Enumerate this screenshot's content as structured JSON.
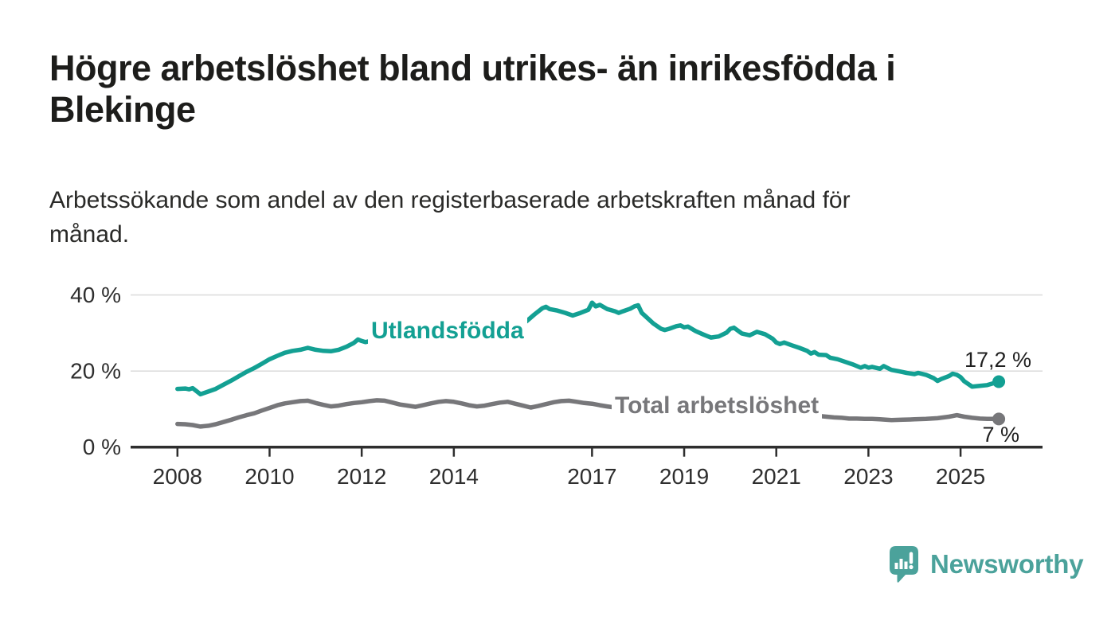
{
  "header": {
    "title_line1": "Högre arbetslöshet bland utrikes- än inrikesfödda i",
    "title_line2": "Blekinge",
    "subtitle_line1": "Arbetssökande som andel av den registerbaserade arbetskraften månad för",
    "subtitle_line2": "månad."
  },
  "chart_data": {
    "type": "line",
    "title": "",
    "xlabel": "",
    "ylabel": "",
    "x_unit": "year (monthly data)",
    "xlim": [
      2007,
      2026.6
    ],
    "ylim": [
      0,
      42
    ],
    "grid": "horizontal",
    "legend_position": "inline-labels-on-lines",
    "x_ticks": [
      {
        "year": 2008,
        "label": "2008"
      },
      {
        "year": 2010,
        "label": "2010"
      },
      {
        "year": 2012,
        "label": "2012"
      },
      {
        "year": 2014,
        "label": "2014"
      },
      {
        "year": 2017,
        "label": "2017"
      },
      {
        "year": 2019,
        "label": "2019"
      },
      {
        "year": 2021,
        "label": "2021"
      },
      {
        "year": 2023,
        "label": "2023"
      },
      {
        "year": 2025,
        "label": "2025"
      }
    ],
    "y_ticks": [
      {
        "value": 0,
        "label": "0 %"
      },
      {
        "value": 20,
        "label": "20 %"
      },
      {
        "value": 40,
        "label": "40 %"
      }
    ],
    "series": [
      {
        "name": "Utlandsfödda",
        "color": "#13a093",
        "end_label": "17,2 %",
        "end_value": 17.2,
        "points": [
          [
            2008.0,
            15.3
          ],
          [
            2008.17,
            15.4
          ],
          [
            2008.25,
            15.2
          ],
          [
            2008.33,
            15.5
          ],
          [
            2008.5,
            13.9
          ],
          [
            2008.67,
            14.6
          ],
          [
            2008.83,
            15.3
          ],
          [
            2009.0,
            16.4
          ],
          [
            2009.17,
            17.5
          ],
          [
            2009.33,
            18.6
          ],
          [
            2009.5,
            19.8
          ],
          [
            2009.67,
            20.8
          ],
          [
            2009.83,
            21.9
          ],
          [
            2010.0,
            23.1
          ],
          [
            2010.17,
            24.0
          ],
          [
            2010.33,
            24.8
          ],
          [
            2010.5,
            25.3
          ],
          [
            2010.67,
            25.6
          ],
          [
            2010.83,
            26.1
          ],
          [
            2011.0,
            25.6
          ],
          [
            2011.17,
            25.3
          ],
          [
            2011.33,
            25.2
          ],
          [
            2011.5,
            25.6
          ],
          [
            2011.67,
            26.4
          ],
          [
            2011.83,
            27.4
          ],
          [
            2011.92,
            28.3
          ],
          [
            2012.0,
            27.9
          ],
          [
            2012.08,
            27.6
          ],
          [
            2012.25,
            28.1
          ],
          [
            2012.42,
            28.4
          ],
          [
            2012.58,
            27.9
          ],
          [
            2012.75,
            27.7
          ],
          [
            2012.92,
            28.1
          ],
          [
            2013.08,
            28.6
          ],
          [
            2013.25,
            29.4
          ],
          [
            2013.42,
            29.1
          ],
          [
            2013.58,
            28.8
          ],
          [
            2013.75,
            28.5
          ],
          [
            2013.92,
            28.9
          ],
          [
            2014.08,
            29.5
          ],
          [
            2014.25,
            29.0
          ],
          [
            2014.42,
            28.6
          ],
          [
            2014.58,
            28.6
          ],
          [
            2014.75,
            29.0
          ],
          [
            2014.92,
            29.6
          ],
          [
            2015.08,
            30.2
          ],
          [
            2015.25,
            30.9
          ],
          [
            2015.42,
            31.8
          ],
          [
            2015.58,
            33.1
          ],
          [
            2015.75,
            34.9
          ],
          [
            2015.92,
            36.5
          ],
          [
            2016.0,
            36.9
          ],
          [
            2016.08,
            36.3
          ],
          [
            2016.25,
            35.9
          ],
          [
            2016.42,
            35.3
          ],
          [
            2016.58,
            34.6
          ],
          [
            2016.75,
            35.3
          ],
          [
            2016.92,
            36.1
          ],
          [
            2017.0,
            38.0
          ],
          [
            2017.08,
            37.0
          ],
          [
            2017.17,
            37.4
          ],
          [
            2017.33,
            36.3
          ],
          [
            2017.5,
            35.7
          ],
          [
            2017.58,
            35.3
          ],
          [
            2017.67,
            35.7
          ],
          [
            2017.83,
            36.4
          ],
          [
            2017.92,
            37.0
          ],
          [
            2018.0,
            37.3
          ],
          [
            2018.08,
            35.3
          ],
          [
            2018.17,
            34.3
          ],
          [
            2018.33,
            32.5
          ],
          [
            2018.5,
            31.1
          ],
          [
            2018.58,
            30.8
          ],
          [
            2018.67,
            31.1
          ],
          [
            2018.83,
            31.8
          ],
          [
            2018.92,
            32.0
          ],
          [
            2019.0,
            31.5
          ],
          [
            2019.08,
            31.7
          ],
          [
            2019.25,
            30.5
          ],
          [
            2019.42,
            29.6
          ],
          [
            2019.58,
            28.8
          ],
          [
            2019.75,
            29.1
          ],
          [
            2019.92,
            30.1
          ],
          [
            2020.0,
            31.1
          ],
          [
            2020.08,
            31.4
          ],
          [
            2020.25,
            29.9
          ],
          [
            2020.42,
            29.4
          ],
          [
            2020.58,
            30.3
          ],
          [
            2020.75,
            29.7
          ],
          [
            2020.92,
            28.5
          ],
          [
            2021.0,
            27.5
          ],
          [
            2021.08,
            27.1
          ],
          [
            2021.17,
            27.5
          ],
          [
            2021.33,
            26.8
          ],
          [
            2021.5,
            26.1
          ],
          [
            2021.67,
            25.3
          ],
          [
            2021.75,
            24.6
          ],
          [
            2021.83,
            25.0
          ],
          [
            2021.92,
            24.3
          ],
          [
            2022.08,
            24.2
          ],
          [
            2022.17,
            23.5
          ],
          [
            2022.33,
            23.1
          ],
          [
            2022.5,
            22.4
          ],
          [
            2022.67,
            21.7
          ],
          [
            2022.83,
            20.9
          ],
          [
            2022.92,
            21.3
          ],
          [
            2023.0,
            20.9
          ],
          [
            2023.08,
            21.1
          ],
          [
            2023.25,
            20.6
          ],
          [
            2023.33,
            21.3
          ],
          [
            2023.5,
            20.3
          ],
          [
            2023.67,
            19.9
          ],
          [
            2023.83,
            19.5
          ],
          [
            2024.0,
            19.2
          ],
          [
            2024.08,
            19.5
          ],
          [
            2024.25,
            19.0
          ],
          [
            2024.42,
            18.1
          ],
          [
            2024.5,
            17.4
          ],
          [
            2024.58,
            17.9
          ],
          [
            2024.75,
            18.7
          ],
          [
            2024.83,
            19.3
          ],
          [
            2024.92,
            19.0
          ],
          [
            2025.0,
            18.4
          ],
          [
            2025.08,
            17.3
          ],
          [
            2025.25,
            15.9
          ],
          [
            2025.42,
            16.1
          ],
          [
            2025.58,
            16.3
          ],
          [
            2025.83,
            17.2
          ]
        ]
      },
      {
        "name": "Total arbetslöshet",
        "color": "#77777a",
        "end_label": "7 %",
        "end_value": 7,
        "points": [
          [
            2008.0,
            6.1
          ],
          [
            2008.17,
            6.0
          ],
          [
            2008.33,
            5.8
          ],
          [
            2008.5,
            5.4
          ],
          [
            2008.67,
            5.6
          ],
          [
            2008.83,
            6.0
          ],
          [
            2009.0,
            6.6
          ],
          [
            2009.17,
            7.2
          ],
          [
            2009.33,
            7.8
          ],
          [
            2009.5,
            8.4
          ],
          [
            2009.67,
            8.9
          ],
          [
            2009.83,
            9.6
          ],
          [
            2010.0,
            10.3
          ],
          [
            2010.17,
            11.0
          ],
          [
            2010.33,
            11.5
          ],
          [
            2010.5,
            11.8
          ],
          [
            2010.67,
            12.1
          ],
          [
            2010.83,
            12.2
          ],
          [
            2011.0,
            11.6
          ],
          [
            2011.17,
            11.1
          ],
          [
            2011.33,
            10.7
          ],
          [
            2011.5,
            10.9
          ],
          [
            2011.67,
            11.3
          ],
          [
            2011.83,
            11.6
          ],
          [
            2012.0,
            11.8
          ],
          [
            2012.17,
            12.1
          ],
          [
            2012.33,
            12.3
          ],
          [
            2012.5,
            12.2
          ],
          [
            2012.67,
            11.7
          ],
          [
            2012.83,
            11.2
          ],
          [
            2013.0,
            10.9
          ],
          [
            2013.17,
            10.6
          ],
          [
            2013.33,
            11.0
          ],
          [
            2013.5,
            11.5
          ],
          [
            2013.67,
            11.9
          ],
          [
            2013.83,
            12.1
          ],
          [
            2014.0,
            11.9
          ],
          [
            2014.17,
            11.5
          ],
          [
            2014.33,
            11.0
          ],
          [
            2014.5,
            10.7
          ],
          [
            2014.67,
            10.9
          ],
          [
            2014.83,
            11.3
          ],
          [
            2015.0,
            11.7
          ],
          [
            2015.17,
            11.9
          ],
          [
            2015.33,
            11.4
          ],
          [
            2015.5,
            10.9
          ],
          [
            2015.67,
            10.4
          ],
          [
            2015.83,
            10.8
          ],
          [
            2016.0,
            11.3
          ],
          [
            2016.17,
            11.8
          ],
          [
            2016.33,
            12.1
          ],
          [
            2016.5,
            12.2
          ],
          [
            2016.67,
            11.9
          ],
          [
            2016.83,
            11.6
          ],
          [
            2017.0,
            11.4
          ],
          [
            2017.17,
            11.0
          ],
          [
            2017.33,
            10.7
          ],
          [
            2017.5,
            10.4
          ],
          [
            2017.75,
            10.1
          ],
          [
            2018.0,
            9.8
          ],
          [
            2018.25,
            9.6
          ],
          [
            2018.5,
            9.4
          ],
          [
            2018.75,
            9.2
          ],
          [
            2019.0,
            9.1
          ],
          [
            2019.25,
            9.0
          ],
          [
            2019.5,
            9.2
          ],
          [
            2019.75,
            9.5
          ],
          [
            2020.0,
            9.9
          ],
          [
            2020.25,
            10.6
          ],
          [
            2020.5,
            10.3
          ],
          [
            2020.75,
            10.0
          ],
          [
            2021.0,
            9.6
          ],
          [
            2021.25,
            9.2
          ],
          [
            2021.5,
            8.8
          ],
          [
            2021.75,
            8.4
          ],
          [
            2022.0,
            8.1
          ],
          [
            2022.25,
            7.8
          ],
          [
            2022.42,
            7.7
          ],
          [
            2022.58,
            7.5
          ],
          [
            2022.75,
            7.5
          ],
          [
            2022.92,
            7.4
          ],
          [
            2023.08,
            7.4
          ],
          [
            2023.25,
            7.3
          ],
          [
            2023.5,
            7.1
          ],
          [
            2023.75,
            7.2
          ],
          [
            2024.0,
            7.3
          ],
          [
            2024.25,
            7.4
          ],
          [
            2024.5,
            7.6
          ],
          [
            2024.75,
            8.0
          ],
          [
            2024.92,
            8.4
          ],
          [
            2025.08,
            8.0
          ],
          [
            2025.25,
            7.7
          ],
          [
            2025.42,
            7.5
          ],
          [
            2025.58,
            7.4
          ],
          [
            2025.83,
            7.4
          ]
        ]
      }
    ],
    "colors": {
      "axis": "#2e2e2e",
      "gridline": "#dedede",
      "tick_text": "#2e2e2e",
      "accent_teal": "#13a093",
      "neutral_gray": "#77777a"
    }
  },
  "logo": {
    "text": "Newsworthy",
    "color": "#4ba29b",
    "icon": "newsworthy-speech-bubble-bar-chart-icon"
  }
}
